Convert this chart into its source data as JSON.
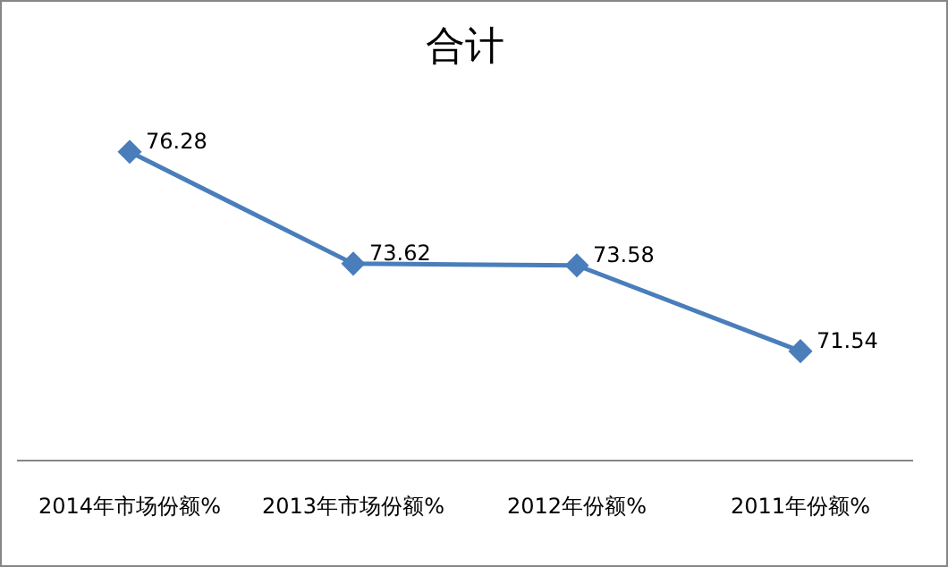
{
  "chart_data": {
    "type": "line",
    "title": "合计",
    "categories": [
      "2014年市场份额%",
      "2013年市场份额%",
      "2012年份额%",
      "2011年份额%"
    ],
    "series": [
      {
        "color": "#4a7ebb",
        "values": [
          76.28,
          73.62,
          73.58,
          71.54
        ]
      }
    ],
    "data_labels": true,
    "marker": "diamond",
    "line_style": "solid",
    "grid": false,
    "legend": false
  }
}
